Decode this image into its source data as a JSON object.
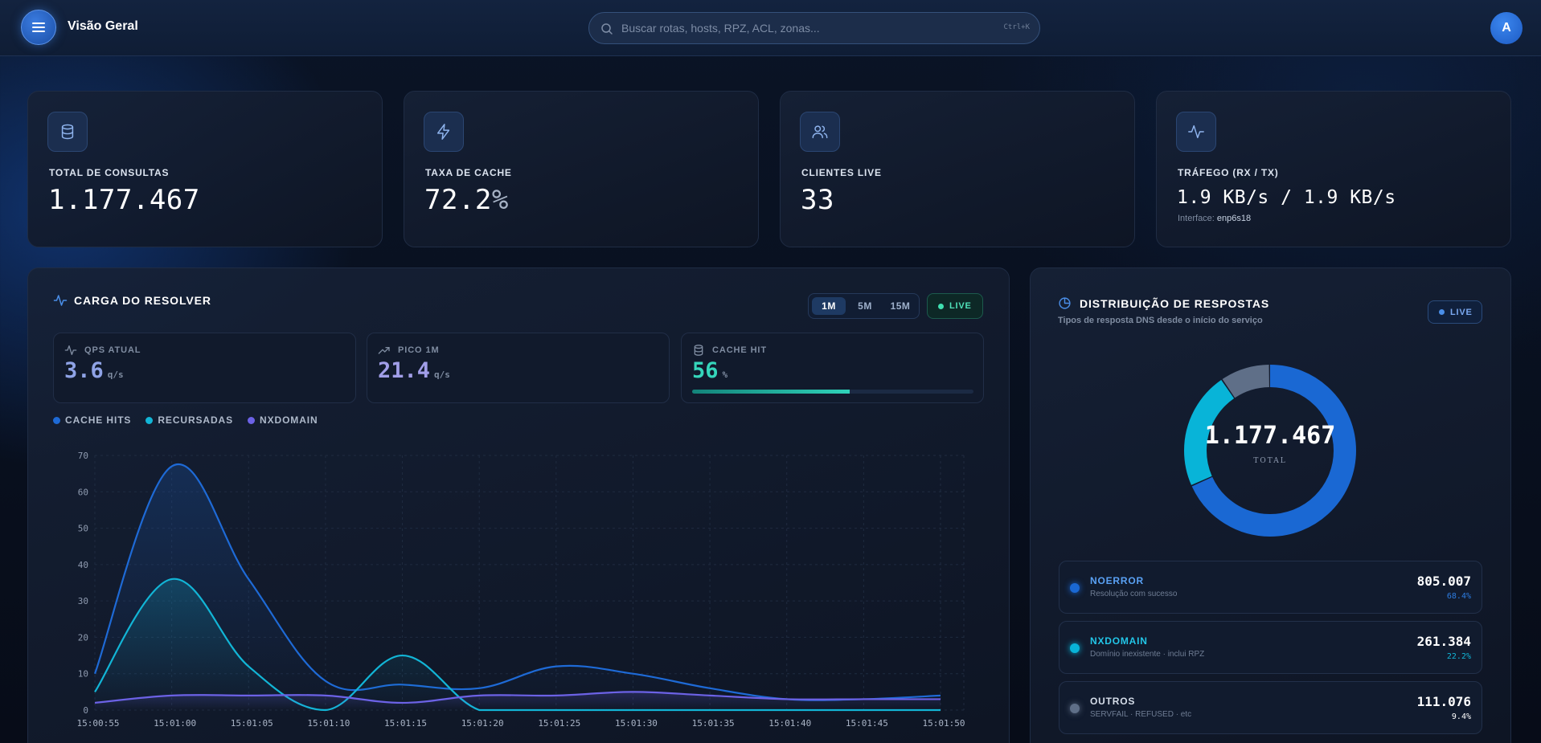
{
  "header": {
    "title": "Visão Geral",
    "search_placeholder": "Buscar rotas, hosts, RPZ, ACL, zonas...",
    "search_shortcut": "Ctrl+K",
    "avatar_initial": "A"
  },
  "stats": [
    {
      "icon": "database-icon",
      "label": "TOTAL DE CONSULTAS",
      "value": "1.177.467"
    },
    {
      "icon": "bolt-icon",
      "label": "TAXA DE CACHE",
      "value": "72.2",
      "unit": "%"
    },
    {
      "icon": "users-icon",
      "label": "CLIENTES LIVE",
      "value": "33"
    },
    {
      "icon": "activity-icon",
      "label": "TRÁFEGO (RX / TX)",
      "value": "1.9 KB/s / 1.9 KB/s",
      "sub_label": "Interface:",
      "sub_value": "enp6s18"
    }
  ],
  "resolver": {
    "title": "CARGA DO RESOLVER",
    "ranges": [
      "1M",
      "5M",
      "15M"
    ],
    "active_range": "1M",
    "live_label": "LIVE",
    "metrics": [
      {
        "label": "QPS ATUAL",
        "value": "3.6",
        "unit": "q/s",
        "color": "#8fa3e6"
      },
      {
        "label": "PICO 1M",
        "value": "21.4",
        "unit": "q/s",
        "color": "#a19ee8"
      },
      {
        "label": "CACHE HIT",
        "value": "56",
        "unit": "%",
        "color": "#35d6bb",
        "progress": 0.56
      }
    ],
    "legend": [
      {
        "name": "CACHE HITS",
        "color": "#1e6ad6"
      },
      {
        "name": "RECURSADAS",
        "color": "#12b5d6"
      },
      {
        "name": "NXDOMAIN",
        "color": "#6c62e6"
      }
    ]
  },
  "chart_data": {
    "type": "line",
    "x": [
      "15:00:55",
      "15:01:00",
      "15:01:05",
      "15:01:10",
      "15:01:15",
      "15:01:20",
      "15:01:25",
      "15:01:30",
      "15:01:35",
      "15:01:40",
      "15:01:45",
      "15:01:50"
    ],
    "ylim": [
      0,
      70
    ],
    "yticks": [
      0,
      10,
      20,
      30,
      40,
      50,
      60,
      70
    ],
    "grid": true,
    "series": [
      {
        "name": "CACHE HITS",
        "color": "#1e6ad6",
        "values": [
          10,
          67,
          36,
          8,
          7,
          6,
          12,
          10,
          6,
          3,
          3,
          4
        ]
      },
      {
        "name": "RECURSADAS",
        "color": "#12b5d6",
        "values": [
          5,
          36,
          12,
          0,
          15,
          0,
          0,
          0,
          0,
          0,
          0,
          0
        ]
      },
      {
        "name": "NXDOMAIN",
        "color": "#6c62e6",
        "values": [
          2,
          4,
          4,
          4,
          2,
          4,
          4,
          5,
          4,
          3,
          3,
          3
        ]
      }
    ]
  },
  "distribution": {
    "title": "DISTRIBUIÇÃO DE RESPOSTAS",
    "subtitle": "Tipos de resposta DNS desde o início do serviço",
    "live_label": "LIVE",
    "total": "1.177.467",
    "total_label": "TOTAL",
    "items": [
      {
        "name": "NOERROR",
        "desc": "Resolução com sucesso",
        "value": "805.007",
        "pct": "68.4%",
        "fraction": 0.684,
        "color": "#1a68d3",
        "name_color": "#5aa2f5",
        "pct_color": "#2d7ce0"
      },
      {
        "name": "NXDOMAIN",
        "desc": "Domínio inexistente · inclui RPZ",
        "value": "261.384",
        "pct": "22.2%",
        "fraction": 0.222,
        "color": "#08b4d8",
        "name_color": "#22c6e8",
        "pct_color": "#12b5d6"
      },
      {
        "name": "OUTROS",
        "desc": "SERVFAIL · REFUSED · etc",
        "value": "111.076",
        "pct": "9.4%",
        "fraction": 0.094,
        "color": "#5f6f88",
        "name_color": "#d6deea",
        "pct_color": "#ffffff"
      }
    ]
  }
}
